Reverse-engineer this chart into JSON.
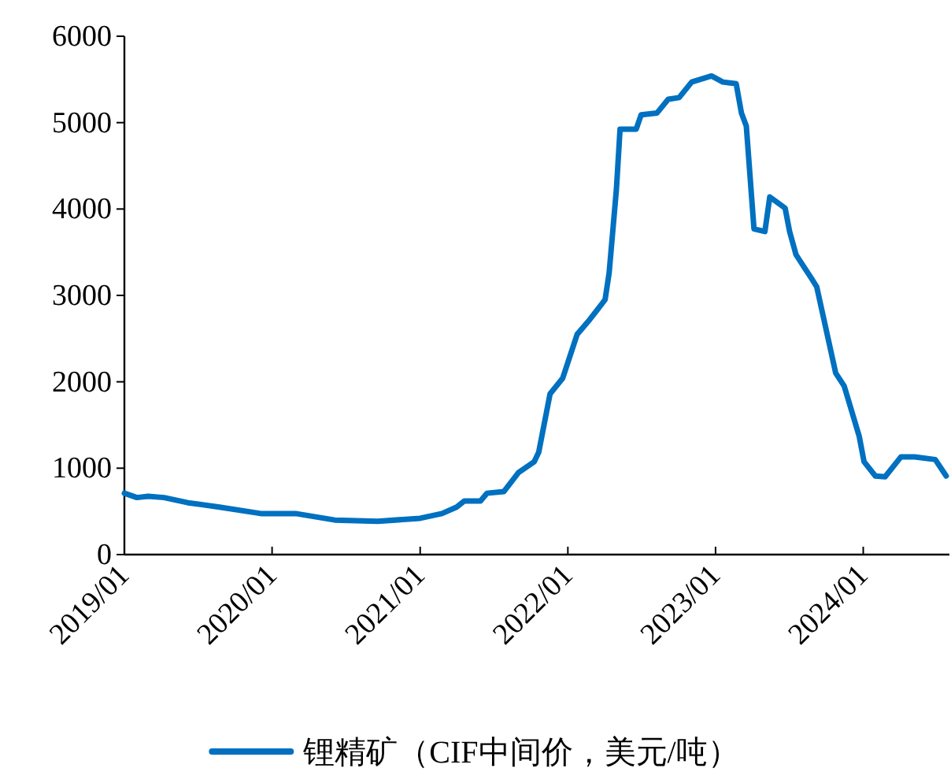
{
  "chart_data": {
    "type": "line",
    "legend": "bottom",
    "grid": false,
    "marker": "none",
    "line_style": "solid",
    "xlim": [
      "2019-01-01",
      "2024-08-01"
    ],
    "xticks": [
      {
        "value": "2019-01",
        "label": "2019/01"
      },
      {
        "value": "2020-01",
        "label": "2020/01"
      },
      {
        "value": "2021-01",
        "label": "2021/01"
      },
      {
        "value": "2022-01",
        "label": "2022/01"
      },
      {
        "value": "2023-01",
        "label": "2023/01"
      },
      {
        "value": "2024-01",
        "label": "2024/01"
      }
    ],
    "ylim": [
      0,
      6000
    ],
    "yticks": [
      0,
      1000,
      2000,
      3000,
      4000,
      5000,
      6000
    ],
    "x": [
      "2019-01-01",
      "2019-02-01",
      "2019-03-01",
      "2019-04-09",
      "2019-06-07",
      "2019-08-24",
      "2019-12-04",
      "2020-02-28",
      "2020-06-04",
      "2020-09-18",
      "2021-01-01",
      "2021-02-24",
      "2021-04-01",
      "2021-04-20",
      "2021-05-30",
      "2021-06-15",
      "2021-07-27",
      "2021-09-01",
      "2021-10-10",
      "2021-10-21",
      "2021-11-18",
      "2021-12-19",
      "2022-01-24",
      "2022-02-24",
      "2022-04-03",
      "2022-04-13",
      "2022-05-01",
      "2022-05-10",
      "2022-06-19",
      "2022-07-01",
      "2022-08-09",
      "2022-09-06",
      "2022-10-03",
      "2022-11-03",
      "2022-12-22",
      "2023-01-19",
      "2023-02-21",
      "2023-03-06",
      "2023-03-18",
      "2023-04-06",
      "2023-05-03",
      "2023-05-15",
      "2023-06-22",
      "2023-07-03",
      "2023-07-19",
      "2023-08-27",
      "2023-09-08",
      "2023-10-25",
      "2023-11-15",
      "2023-12-22",
      "2024-01-03",
      "2024-01-31",
      "2024-02-24",
      "2024-04-03",
      "2024-05-07",
      "2024-06-27",
      "2024-07-24"
    ],
    "series": [
      {
        "name": "锂精矿（CIF中间价，美元/吨）",
        "color": "#0070c0",
        "values": [
          710,
          660,
          675,
          660,
          600,
          550,
          475,
          475,
          400,
          385,
          420,
          475,
          550,
          620,
          620,
          710,
          730,
          950,
          1075,
          1185,
          1860,
          2040,
          2550,
          2720,
          2950,
          3260,
          4230,
          4925,
          4925,
          5090,
          5110,
          5270,
          5290,
          5470,
          5540,
          5470,
          5450,
          5110,
          4960,
          3770,
          3740,
          4140,
          4010,
          3740,
          3470,
          3190,
          3100,
          2100,
          1950,
          1370,
          1075,
          910,
          900,
          1130,
          1130,
          1100,
          910
        ]
      }
    ]
  }
}
